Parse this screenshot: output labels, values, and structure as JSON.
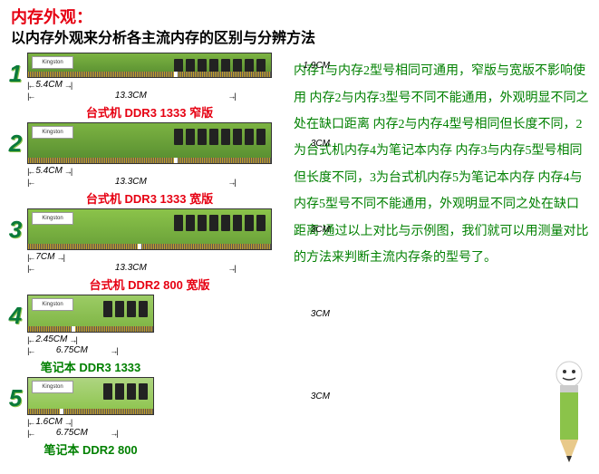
{
  "header": {
    "title": "内存外观：",
    "subtitle": "以内存外观来分析各主流内存的区别与分辨方法"
  },
  "modules": [
    {
      "num": "1",
      "caption": "台式机 DDR3 1333 窄版",
      "captionColor": "red",
      "height": "1.9CM",
      "widths": [
        "5.4CM",
        "13.3CM"
      ],
      "type": "dimm",
      "notch": 60,
      "chips": 8
    },
    {
      "num": "2",
      "caption": "台式机 DDR3 1333 宽版",
      "captionColor": "red",
      "height": "3CM",
      "widths": [
        "5.4CM",
        "13.3CM"
      ],
      "type": "dimm-wide",
      "notch": 60,
      "chips": 8
    },
    {
      "num": "3",
      "caption": "台式机 DDR2 800 宽版",
      "captionColor": "red",
      "height": "3CM",
      "widths": [
        "7CM",
        "13.3CM"
      ],
      "type": "dimm-ddr2",
      "notch": 45,
      "chips": 8
    },
    {
      "num": "4",
      "caption": "笔记本 DDR3 1333",
      "captionColor": "green",
      "height": "3CM",
      "widths": [
        "2.45CM",
        "6.75CM"
      ],
      "type": "sodimm",
      "notch": 35,
      "chips": 4
    },
    {
      "num": "5",
      "caption": "笔记本 DDR2 800",
      "captionColor": "green",
      "height": "3CM",
      "widths": [
        "1.6CM",
        "6.75CM"
      ],
      "type": "sodimm-ddr2",
      "notch": 25,
      "chips": 4
    }
  ],
  "description": [
    "内存1与内存2型号相同可通用，窄版与宽版不影响使用",
    "内存2与内存3型号不同不能通用，外观明显不同之处在缺口距离",
    "内存2与内存4型号相同但长度不同，2为台式机内存4为笔记本内存",
    "内存3与内存5型号相同但长度不同，3为台式机内存5为笔记本内存",
    "内存4与内存5型号不同不能通用，外观明显不同之处在缺口距离",
    "通过以上对比与示例图，我们就可以用测量对比的方法来判断主流内存条的型号了。"
  ],
  "colors": {
    "titleRed": "#e60012",
    "textGreen": "#008000",
    "numGreen": "#0a7a3a"
  },
  "brand": "Kingston"
}
